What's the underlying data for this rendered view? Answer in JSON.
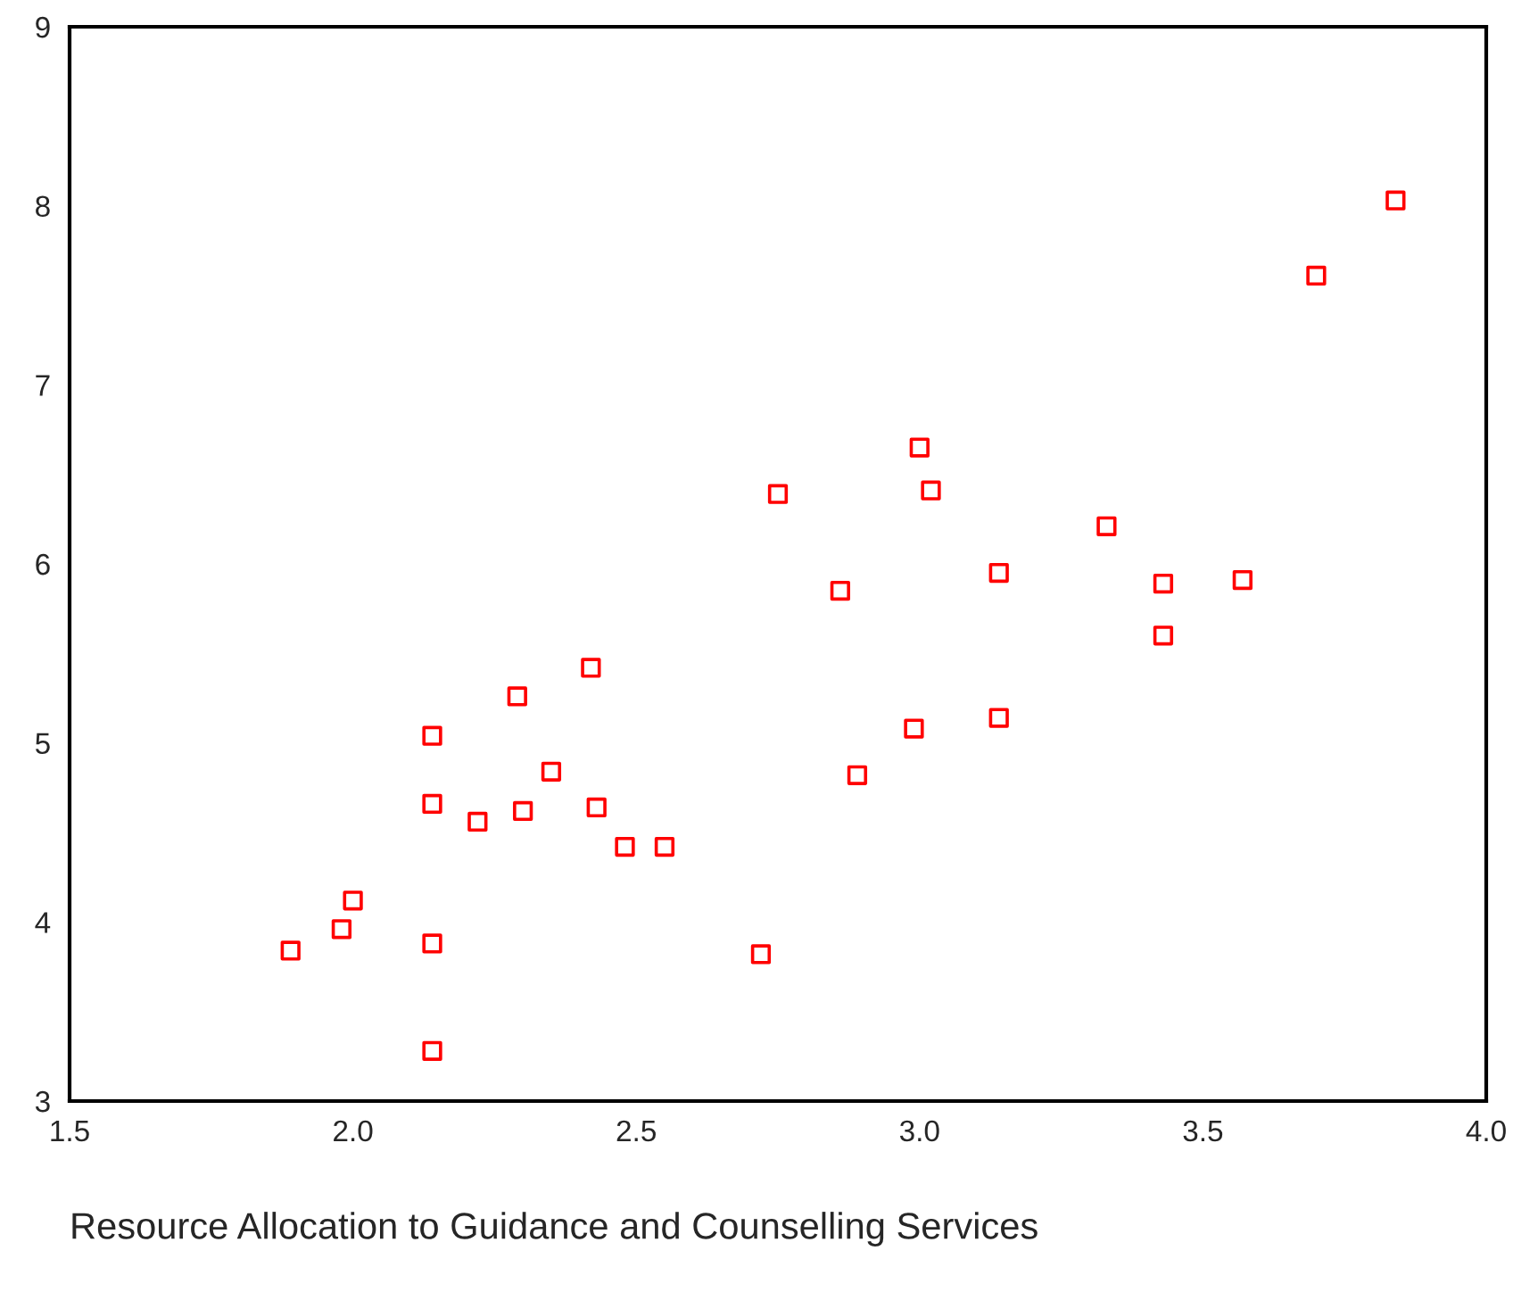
{
  "chart_data": {
    "type": "scatter",
    "xlabel": "Resource Allocation to Guidance and Counselling Services",
    "x": [
      1.89,
      1.98,
      2.0,
      2.14,
      2.14,
      2.14,
      2.14,
      2.22,
      2.29,
      2.3,
      2.35,
      2.42,
      2.43,
      2.48,
      2.55,
      2.72,
      2.75,
      2.86,
      2.89,
      2.99,
      3.0,
      3.02,
      3.14,
      3.14,
      3.33,
      3.43,
      3.43,
      3.57,
      3.7,
      3.84
    ],
    "values": [
      3.84,
      3.96,
      4.12,
      3.88,
      3.28,
      4.66,
      5.04,
      4.56,
      5.26,
      4.62,
      4.84,
      5.42,
      4.64,
      4.42,
      4.42,
      3.82,
      6.39,
      5.85,
      4.82,
      5.08,
      6.65,
      6.41,
      5.95,
      5.14,
      6.21,
      5.89,
      5.6,
      5.91,
      7.61,
      8.03
    ],
    "color": "#ff0000",
    "marker": "square",
    "xlim": [
      1.5,
      4.0
    ],
    "ylim": [
      3,
      9
    ],
    "xticks": [
      {
        "value": 1.5,
        "label": "1.5"
      },
      {
        "value": 2,
        "label": "2.0"
      },
      {
        "value": 2.5,
        "label": "2.5"
      },
      {
        "value": 3,
        "label": "3.0"
      },
      {
        "value": 3.5,
        "label": "3.5"
      },
      {
        "value": 4,
        "label": "4.0"
      }
    ],
    "yticks": [
      3,
      4,
      5,
      6,
      7,
      8,
      9
    ],
    "grid": false,
    "legend": false
  }
}
